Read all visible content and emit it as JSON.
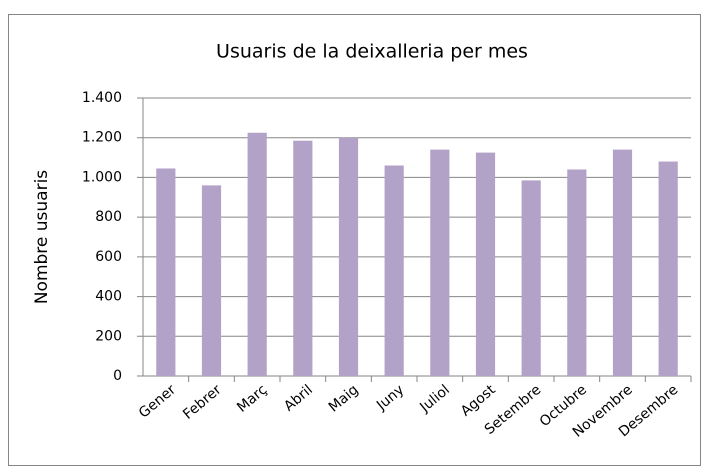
{
  "chart_data": {
    "type": "bar",
    "title": "Usuaris de la deixalleria per mes",
    "y_label": "Nombre usuaris",
    "categories": [
      "Gener",
      "Febrer",
      "Març",
      "Abril",
      "Maig",
      "Juny",
      "Juliol",
      "Agost",
      "Setembre",
      "Octubre",
      "Novembre",
      "Desembre"
    ],
    "values": [
      1045,
      960,
      1225,
      1185,
      1200,
      1060,
      1140,
      1125,
      985,
      1040,
      1140,
      1080
    ],
    "color": "#b3a2c7",
    "ylim": [
      0,
      1400
    ],
    "yticks": [
      0,
      200,
      400,
      600,
      800,
      {
        "value": 1000,
        "label": "1.000"
      },
      {
        "value": 1200,
        "label": "1.200"
      },
      {
        "value": 1400,
        "label": "1.400"
      }
    ],
    "grid": true
  }
}
